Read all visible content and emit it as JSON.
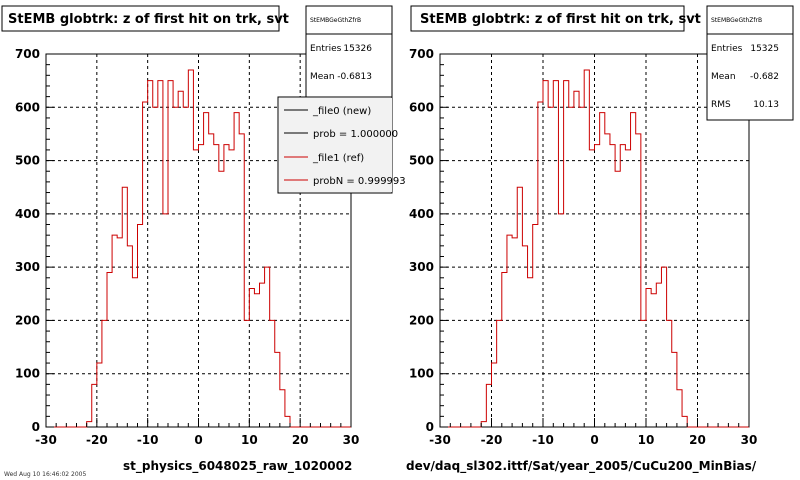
{
  "colors": {
    "ref": "#cc0000",
    "new": "#000000",
    "grid": "#000000",
    "frame_bg": "#ffffff"
  },
  "footer_text": "Wed Aug 10 16:46:02 2005",
  "chart_data": [
    {
      "type": "histogram",
      "title": "StEMB globtrk: z of first hit on trk, svt",
      "xlabel": "st_physics_6048025_raw_1020002",
      "ylabel": "",
      "xlim": [
        -30,
        30
      ],
      "ylim": [
        0,
        700
      ],
      "xticks": [
        -30,
        -20,
        -10,
        0,
        10,
        20,
        30
      ],
      "yticks": [
        0,
        100,
        200,
        300,
        400,
        500,
        600,
        700
      ],
      "grid": true,
      "bin_width": 1,
      "bins_lo": -30,
      "series": [
        {
          "name": "_file1 (ref)",
          "color": "#cc0000",
          "values": [
            0,
            0,
            0,
            0,
            0,
            0,
            0,
            0,
            10,
            80,
            120,
            200,
            290,
            360,
            355,
            450,
            340,
            280,
            380,
            610,
            650,
            600,
            650,
            400,
            650,
            600,
            630,
            600,
            670,
            520,
            530,
            590,
            550,
            530,
            480,
            530,
            520,
            590,
            550,
            200,
            260,
            250,
            270,
            300,
            200,
            140,
            70,
            20,
            0,
            0,
            0,
            0,
            0,
            0,
            0,
            0,
            0,
            0,
            0,
            0
          ]
        }
      ],
      "stats": {
        "name": "StEMBGeGthZfrB",
        "entries_label": "Entries",
        "entries": "15326",
        "mean_label": "Mean",
        "mean": "-0.6813"
      },
      "legend": {
        "position": "right-middle",
        "entries": [
          {
            "label": "_file0 (new)",
            "color": "#000000"
          },
          {
            "label": "prob = 1.000000",
            "color": "#000000"
          },
          {
            "label": "_file1 (ref)",
            "color": "#cc0000"
          },
          {
            "label": "probN = 0.999993",
            "color": "#cc0000"
          }
        ]
      }
    },
    {
      "type": "histogram",
      "title": "StEMB globtrk: z of first hit on trk, svt",
      "xlabel": "dev/daq_sl302.ittf/Sat/year_2005/CuCu200_MinBias/",
      "ylabel": "",
      "xlim": [
        -30,
        30
      ],
      "ylim": [
        0,
        700
      ],
      "xticks": [
        -30,
        -20,
        -10,
        0,
        10,
        20,
        30
      ],
      "yticks": [
        0,
        100,
        200,
        300,
        400,
        500,
        600,
        700
      ],
      "grid": true,
      "bin_width": 1,
      "bins_lo": -30,
      "series": [
        {
          "name": "",
          "color": "#cc0000",
          "values": [
            0,
            0,
            0,
            0,
            0,
            0,
            0,
            0,
            10,
            80,
            120,
            200,
            290,
            360,
            355,
            450,
            340,
            280,
            380,
            610,
            650,
            600,
            650,
            400,
            650,
            600,
            630,
            600,
            670,
            520,
            530,
            590,
            550,
            530,
            480,
            530,
            520,
            590,
            550,
            200,
            260,
            250,
            270,
            300,
            200,
            140,
            70,
            20,
            0,
            0,
            0,
            0,
            0,
            0,
            0,
            0,
            0,
            0,
            0,
            0
          ]
        }
      ],
      "stats": {
        "name": "StEMBGeGthZfrB",
        "entries_label": "Entries",
        "entries": "15325",
        "mean_label": "Mean",
        "mean": "-0.682",
        "rms_label": "RMS",
        "rms": "10.13"
      }
    }
  ]
}
